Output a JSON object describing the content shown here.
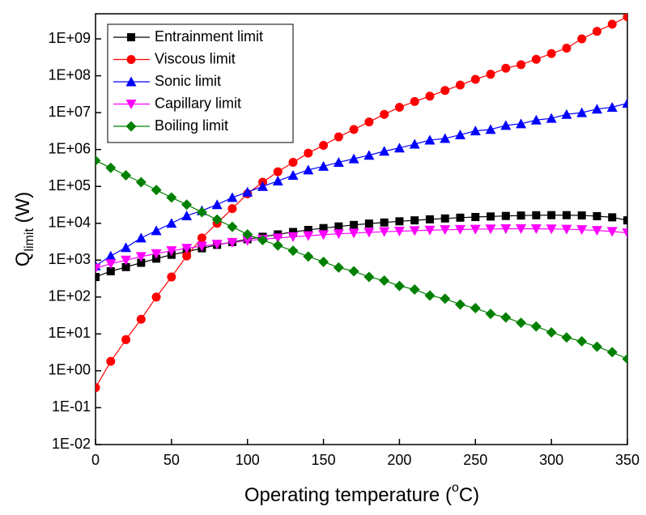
{
  "chart_data": {
    "type": "line",
    "xlabel": {
      "text": "Operating temperature (",
      "sup": "o",
      "end": "C)"
    },
    "ylabel": {
      "text": "Q",
      "sub": "limit",
      "unit": " (W)"
    },
    "log_y": true,
    "xlim": [
      0,
      350
    ],
    "xticks": [
      0,
      50,
      100,
      150,
      200,
      250,
      300,
      350
    ],
    "ylim": [
      0.01,
      4800000000
    ],
    "yticks": [
      {
        "value": 0.01,
        "label": "1E-02"
      },
      {
        "value": 0.1,
        "label": "1E-01"
      },
      {
        "value": 1,
        "label": "1E+00"
      },
      {
        "value": 10,
        "label": "1E+01"
      },
      {
        "value": 100,
        "label": "1E+02"
      },
      {
        "value": 1000,
        "label": "1E+03"
      },
      {
        "value": 10000,
        "label": "1E+04"
      },
      {
        "value": 100000,
        "label": "1E+05"
      },
      {
        "value": 1000000,
        "label": "1E+06"
      },
      {
        "value": 10000000,
        "label": "1E+07"
      },
      {
        "value": 100000000,
        "label": "1E+08"
      },
      {
        "value": 1000000000,
        "label": "1E+09"
      }
    ],
    "legend": "top-left",
    "x": [
      0,
      10,
      20,
      30,
      40,
      50,
      60,
      70,
      80,
      90,
      100,
      110,
      120,
      130,
      140,
      150,
      160,
      170,
      180,
      190,
      200,
      210,
      220,
      230,
      240,
      250,
      260,
      270,
      280,
      290,
      300,
      310,
      320,
      330,
      340,
      350
    ],
    "series": [
      {
        "name": "Entrainment limit",
        "color": "#000000",
        "marker": "square",
        "values": [
          350,
          500,
          650,
          850,
          1100,
          1400,
          1700,
          2100,
          2600,
          3100,
          3700,
          4300,
          5000,
          5800,
          6600,
          7400,
          8200,
          9000,
          9800,
          10500,
          11300,
          12000,
          12800,
          13500,
          14200,
          14800,
          15300,
          15800,
          16200,
          16500,
          16600,
          16600,
          16300,
          15600,
          14500,
          12000
        ]
      },
      {
        "name": "Viscous limit",
        "color": "#ff0000",
        "marker": "circle",
        "values": [
          0.35,
          1.8,
          7,
          25,
          100,
          350,
          1300,
          4000,
          10000,
          25000,
          63000,
          130000,
          250000,
          450000,
          800000,
          1300000,
          2200000,
          3500000,
          5600000,
          9000000,
          14000000,
          20000000,
          28000000,
          40000000,
          56000000,
          80000000,
          110000000,
          160000000,
          200000000,
          280000000,
          400000000,
          560000000,
          1000000000,
          1600000000,
          2500000000,
          4000000000
        ]
      },
      {
        "name": "Sonic limit",
        "color": "#0000ff",
        "marker": "triangle-up",
        "values": [
          700,
          1300,
          2200,
          4000,
          6300,
          10000,
          16000,
          22000,
          32000,
          50000,
          70000,
          100000,
          140000,
          200000,
          280000,
          350000,
          450000,
          560000,
          700000,
          900000,
          1100000,
          1400000,
          1800000,
          2000000,
          2500000,
          3200000,
          3500000,
          4500000,
          5000000,
          6300000,
          7000000,
          9000000,
          10000000,
          12500000,
          14000000,
          18000000
        ]
      },
      {
        "name": "Capillary limit",
        "color": "#ff00ff",
        "marker": "triangle-down",
        "values": [
          600,
          800,
          1000,
          1250,
          1500,
          1800,
          2100,
          2400,
          2700,
          3000,
          3400,
          3700,
          4000,
          4300,
          4600,
          4900,
          5200,
          5400,
          5700,
          5900,
          6100,
          6300,
          6500,
          6700,
          6800,
          6900,
          7000,
          7100,
          7100,
          7100,
          7000,
          6900,
          6700,
          6400,
          6000,
          5500
        ]
      },
      {
        "name": "Boiling limit",
        "color": "#008000",
        "marker": "diamond",
        "values": [
          500000,
          320000,
          200000,
          130000,
          80000,
          50000,
          32000,
          20000,
          12600,
          8000,
          5000,
          3500,
          2500,
          1800,
          1260,
          900,
          630,
          500,
          350,
          280,
          200,
          160,
          110,
          90,
          63,
          50,
          35,
          28,
          20,
          16,
          11,
          8,
          6.3,
          4.5,
          3.2,
          2.1
        ]
      }
    ]
  }
}
